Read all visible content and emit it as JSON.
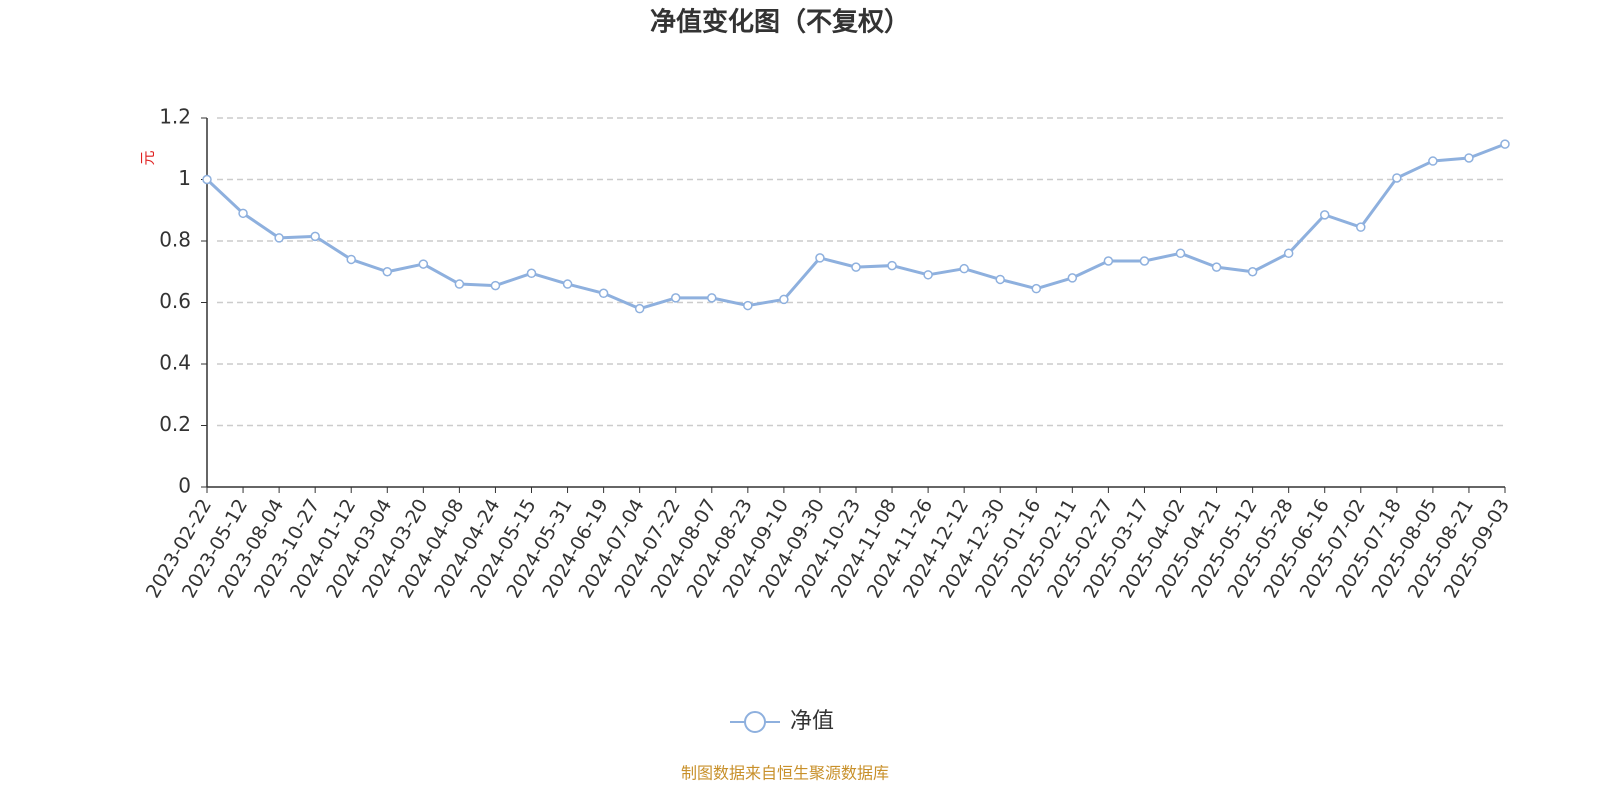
{
  "chart_data": {
    "type": "line",
    "title": "净值变化图（不复权）",
    "y_unit": "元",
    "categories": [
      "2023-02-22",
      "2023-05-12",
      "2023-08-04",
      "2023-10-27",
      "2024-01-12",
      "2024-03-04",
      "2024-03-20",
      "2024-04-08",
      "2024-04-24",
      "2024-05-15",
      "2024-05-31",
      "2024-06-19",
      "2024-07-04",
      "2024-07-22",
      "2024-08-07",
      "2024-08-23",
      "2024-09-10",
      "2024-09-30",
      "2024-10-23",
      "2024-11-08",
      "2024-11-26",
      "2024-12-12",
      "2024-12-30",
      "2025-01-16",
      "2025-02-11",
      "2025-02-27",
      "2025-03-17",
      "2025-04-02",
      "2025-04-21",
      "2025-05-12",
      "2025-05-28",
      "2025-06-16",
      "2025-07-02",
      "2025-07-18",
      "2025-08-05",
      "2025-08-21",
      "2025-09-03"
    ],
    "series": [
      {
        "name": "净值",
        "color": "#8eb0de",
        "values": [
          1.0,
          0.89,
          0.81,
          0.815,
          0.74,
          0.7,
          0.725,
          0.66,
          0.655,
          0.695,
          0.66,
          0.63,
          0.58,
          0.615,
          0.615,
          0.59,
          0.61,
          0.745,
          0.715,
          0.72,
          0.69,
          0.71,
          0.675,
          0.645,
          0.68,
          0.735,
          0.735,
          0.76,
          0.715,
          0.7,
          0.76,
          0.885,
          0.845,
          1.005,
          1.06,
          1.07,
          1.115
        ]
      }
    ],
    "ylim": [
      0,
      1.2
    ],
    "yticks": [
      0,
      0.2,
      0.4,
      0.6,
      0.8,
      1,
      1.2
    ],
    "grid": true,
    "source": "制图数据来自恒生聚源数据库"
  }
}
